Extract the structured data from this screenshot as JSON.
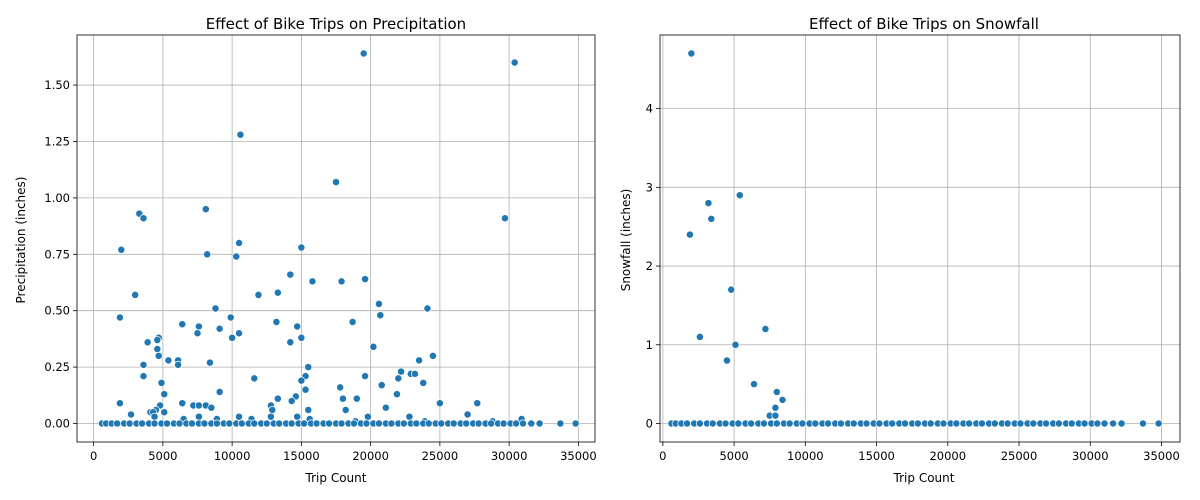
{
  "chart_data": [
    {
      "type": "scatter",
      "title": "Effect of Bike Trips on Precipitation",
      "xlabel": "Trip Count",
      "ylabel": "Precipitation (inches)",
      "xlim": [
        -1200,
        36200
      ],
      "ylim": [
        -0.082,
        1.722
      ],
      "x_ticks": [
        0,
        5000,
        10000,
        15000,
        20000,
        25000,
        30000,
        35000
      ],
      "y_ticks": [
        0.0,
        0.25,
        0.5,
        0.75,
        1.0,
        1.25,
        1.5
      ],
      "y_tick_labels": [
        "0.00",
        "0.25",
        "0.50",
        "0.75",
        "1.00",
        "1.25",
        "1.50"
      ],
      "grid": true,
      "marker_color": "#1f77b4",
      "points": [
        [
          19500,
          1.64
        ],
        [
          30400,
          1.6
        ],
        [
          10600,
          1.28
        ],
        [
          17500,
          1.07
        ],
        [
          8100,
          0.95
        ],
        [
          3300,
          0.93
        ],
        [
          3600,
          0.91
        ],
        [
          29700,
          0.91
        ],
        [
          10500,
          0.8
        ],
        [
          15000,
          0.78
        ],
        [
          2000,
          0.77
        ],
        [
          8200,
          0.75
        ],
        [
          10300,
          0.74
        ],
        [
          14200,
          0.66
        ],
        [
          19600,
          0.64
        ],
        [
          15800,
          0.63
        ],
        [
          17900,
          0.63
        ],
        [
          13300,
          0.58
        ],
        [
          3000,
          0.57
        ],
        [
          11900,
          0.57
        ],
        [
          20600,
          0.53
        ],
        [
          8800,
          0.51
        ],
        [
          24100,
          0.51
        ],
        [
          20700,
          0.48
        ],
        [
          1900,
          0.47
        ],
        [
          9900,
          0.47
        ],
        [
          13200,
          0.45
        ],
        [
          18700,
          0.45
        ],
        [
          6400,
          0.44
        ],
        [
          7600,
          0.43
        ],
        [
          14700,
          0.43
        ],
        [
          9100,
          0.42
        ],
        [
          7500,
          0.4
        ],
        [
          10500,
          0.4
        ],
        [
          4700,
          0.38
        ],
        [
          10000,
          0.38
        ],
        [
          15000,
          0.38
        ],
        [
          4600,
          0.37
        ],
        [
          3900,
          0.36
        ],
        [
          14200,
          0.36
        ],
        [
          20200,
          0.34
        ],
        [
          4600,
          0.33
        ],
        [
          4700,
          0.3
        ],
        [
          24500,
          0.3
        ],
        [
          5400,
          0.28
        ],
        [
          6100,
          0.28
        ],
        [
          23500,
          0.28
        ],
        [
          8400,
          0.27
        ],
        [
          3600,
          0.26
        ],
        [
          6100,
          0.26
        ],
        [
          15500,
          0.25
        ],
        [
          22200,
          0.23
        ],
        [
          22900,
          0.22
        ],
        [
          23200,
          0.22
        ],
        [
          3600,
          0.21
        ],
        [
          15300,
          0.21
        ],
        [
          19600,
          0.21
        ],
        [
          11600,
          0.2
        ],
        [
          22000,
          0.2
        ],
        [
          4900,
          0.18
        ],
        [
          15000,
          0.19
        ],
        [
          23800,
          0.18
        ],
        [
          17800,
          0.16
        ],
        [
          20800,
          0.17
        ],
        [
          15300,
          0.15
        ],
        [
          9100,
          0.14
        ],
        [
          5100,
          0.13
        ],
        [
          21900,
          0.13
        ],
        [
          14600,
          0.12
        ],
        [
          13300,
          0.11
        ],
        [
          18000,
          0.11
        ],
        [
          19000,
          0.11
        ],
        [
          14300,
          0.1
        ],
        [
          1900,
          0.09
        ],
        [
          6400,
          0.09
        ],
        [
          25000,
          0.09
        ],
        [
          27700,
          0.09
        ],
        [
          4800,
          0.08
        ],
        [
          7200,
          0.08
        ],
        [
          7600,
          0.08
        ],
        [
          8100,
          0.08
        ],
        [
          12800,
          0.08
        ],
        [
          8500,
          0.07
        ],
        [
          21100,
          0.07
        ],
        [
          4500,
          0.06
        ],
        [
          12900,
          0.06
        ],
        [
          15500,
          0.06
        ],
        [
          18200,
          0.06
        ],
        [
          4100,
          0.05
        ],
        [
          4300,
          0.05
        ],
        [
          5100,
          0.05
        ],
        [
          2700,
          0.04
        ],
        [
          27000,
          0.04
        ],
        [
          4400,
          0.03
        ],
        [
          7600,
          0.03
        ],
        [
          10500,
          0.03
        ],
        [
          12800,
          0.03
        ],
        [
          14700,
          0.03
        ],
        [
          19800,
          0.03
        ],
        [
          22800,
          0.03
        ],
        [
          6500,
          0.02
        ],
        [
          8900,
          0.02
        ],
        [
          11400,
          0.02
        ],
        [
          15600,
          0.02
        ],
        [
          30900,
          0.02
        ],
        [
          18900,
          0.01
        ],
        [
          23900,
          0.01
        ],
        [
          28800,
          0.01
        ],
        [
          600,
          0
        ],
        [
          900,
          0
        ],
        [
          1300,
          0
        ],
        [
          1700,
          0
        ],
        [
          2200,
          0
        ],
        [
          2600,
          0
        ],
        [
          3100,
          0
        ],
        [
          3500,
          0
        ],
        [
          4000,
          0
        ],
        [
          4400,
          0
        ],
        [
          4900,
          0
        ],
        [
          5300,
          0
        ],
        [
          5800,
          0
        ],
        [
          6200,
          0
        ],
        [
          6700,
          0
        ],
        [
          7100,
          0
        ],
        [
          7600,
          0
        ],
        [
          8000,
          0
        ],
        [
          8500,
          0
        ],
        [
          8900,
          0
        ],
        [
          9400,
          0
        ],
        [
          9800,
          0
        ],
        [
          10300,
          0
        ],
        [
          10700,
          0
        ],
        [
          11200,
          0
        ],
        [
          11600,
          0
        ],
        [
          12100,
          0
        ],
        [
          12500,
          0
        ],
        [
          13000,
          0
        ],
        [
          13400,
          0
        ],
        [
          13900,
          0
        ],
        [
          14300,
          0
        ],
        [
          14800,
          0
        ],
        [
          15200,
          0
        ],
        [
          15700,
          0
        ],
        [
          16100,
          0
        ],
        [
          16600,
          0
        ],
        [
          17000,
          0
        ],
        [
          17500,
          0
        ],
        [
          17900,
          0
        ],
        [
          18400,
          0
        ],
        [
          18800,
          0
        ],
        [
          19300,
          0
        ],
        [
          19700,
          0
        ],
        [
          20200,
          0
        ],
        [
          20600,
          0
        ],
        [
          21100,
          0
        ],
        [
          21500,
          0
        ],
        [
          22000,
          0
        ],
        [
          22400,
          0
        ],
        [
          22900,
          0
        ],
        [
          23300,
          0
        ],
        [
          23800,
          0
        ],
        [
          24200,
          0
        ],
        [
          24700,
          0
        ],
        [
          25100,
          0
        ],
        [
          25600,
          0
        ],
        [
          26000,
          0
        ],
        [
          26500,
          0
        ],
        [
          26900,
          0
        ],
        [
          27400,
          0
        ],
        [
          27800,
          0
        ],
        [
          28300,
          0
        ],
        [
          28700,
          0
        ],
        [
          29200,
          0
        ],
        [
          29600,
          0
        ],
        [
          30100,
          0
        ],
        [
          30500,
          0
        ],
        [
          31000,
          0
        ],
        [
          31600,
          0
        ],
        [
          32200,
          0
        ],
        [
          33700,
          0
        ],
        [
          34800,
          0
        ]
      ]
    },
    {
      "type": "scatter",
      "title": "Effect of Bike Trips on Snowfall",
      "xlabel": "Trip Count",
      "ylabel": "Snowfall (inches)",
      "xlim": [
        -200,
        36300
      ],
      "ylim": [
        -0.235,
        4.935
      ],
      "x_ticks": [
        0,
        5000,
        10000,
        15000,
        20000,
        25000,
        30000,
        35000
      ],
      "y_ticks": [
        0,
        1,
        2,
        3,
        4
      ],
      "y_tick_labels": [
        "0",
        "1",
        "2",
        "3",
        "4"
      ],
      "grid": true,
      "marker_color": "#1f77b4",
      "points": [
        [
          2000,
          4.7
        ],
        [
          5400,
          2.9
        ],
        [
          3200,
          2.8
        ],
        [
          3400,
          2.6
        ],
        [
          1900,
          2.4
        ],
        [
          4800,
          1.7
        ],
        [
          7200,
          1.2
        ],
        [
          2600,
          1.1
        ],
        [
          5100,
          1.0
        ],
        [
          4500,
          0.8
        ],
        [
          6400,
          0.5
        ],
        [
          8000,
          0.4
        ],
        [
          8400,
          0.3
        ],
        [
          7900,
          0.2
        ],
        [
          7500,
          0.1
        ],
        [
          7900,
          0.1
        ],
        [
          600,
          0
        ],
        [
          900,
          0
        ],
        [
          1300,
          0
        ],
        [
          1700,
          0
        ],
        [
          2200,
          0
        ],
        [
          2600,
          0
        ],
        [
          3100,
          0
        ],
        [
          3500,
          0
        ],
        [
          4000,
          0
        ],
        [
          4400,
          0
        ],
        [
          4900,
          0
        ],
        [
          5300,
          0
        ],
        [
          5800,
          0
        ],
        [
          6200,
          0
        ],
        [
          6700,
          0
        ],
        [
          7100,
          0
        ],
        [
          7600,
          0
        ],
        [
          8000,
          0
        ],
        [
          8500,
          0
        ],
        [
          8900,
          0
        ],
        [
          9400,
          0
        ],
        [
          9800,
          0
        ],
        [
          10300,
          0
        ],
        [
          10700,
          0
        ],
        [
          11200,
          0
        ],
        [
          11600,
          0
        ],
        [
          12100,
          0
        ],
        [
          12500,
          0
        ],
        [
          13000,
          0
        ],
        [
          13400,
          0
        ],
        [
          13900,
          0
        ],
        [
          14300,
          0
        ],
        [
          14800,
          0
        ],
        [
          15200,
          0
        ],
        [
          15700,
          0
        ],
        [
          16100,
          0
        ],
        [
          16600,
          0
        ],
        [
          17000,
          0
        ],
        [
          17500,
          0
        ],
        [
          17900,
          0
        ],
        [
          18400,
          0
        ],
        [
          18800,
          0
        ],
        [
          19300,
          0
        ],
        [
          19700,
          0
        ],
        [
          20200,
          0
        ],
        [
          20600,
          0
        ],
        [
          21100,
          0
        ],
        [
          21500,
          0
        ],
        [
          22000,
          0
        ],
        [
          22400,
          0
        ],
        [
          22900,
          0
        ],
        [
          23300,
          0
        ],
        [
          23800,
          0
        ],
        [
          24200,
          0
        ],
        [
          24700,
          0
        ],
        [
          25100,
          0
        ],
        [
          25600,
          0
        ],
        [
          26000,
          0
        ],
        [
          26500,
          0
        ],
        [
          26900,
          0
        ],
        [
          27400,
          0
        ],
        [
          27800,
          0
        ],
        [
          28300,
          0
        ],
        [
          28700,
          0
        ],
        [
          29200,
          0
        ],
        [
          29600,
          0
        ],
        [
          30100,
          0
        ],
        [
          30500,
          0
        ],
        [
          31000,
          0
        ],
        [
          31600,
          0
        ],
        [
          32200,
          0
        ],
        [
          33700,
          0
        ],
        [
          34800,
          0
        ]
      ]
    }
  ]
}
